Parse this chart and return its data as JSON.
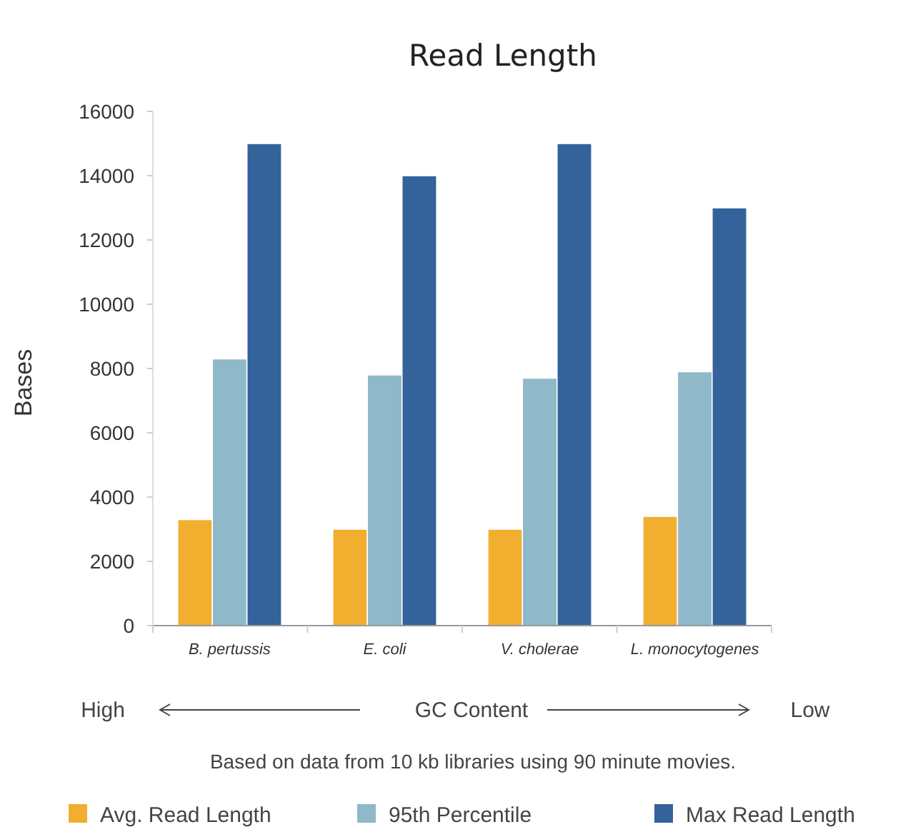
{
  "chart_data": {
    "type": "bar",
    "title": "Read Length",
    "ylabel": "Bases",
    "xlabel": "GC Content",
    "categories": [
      "B. pertussis",
      "E. coli",
      "V. cholerae",
      "L. monocytogenes"
    ],
    "series": [
      {
        "name": "Avg. Read Length",
        "color": "#f2ae2f",
        "values": [
          3300,
          3000,
          3000,
          3400
        ]
      },
      {
        "name": "95th Percentile",
        "color": "#8fb8c8",
        "values": [
          8300,
          7800,
          7700,
          7900
        ]
      },
      {
        "name": "Max Read Length",
        "color": "#34629a",
        "values": [
          15000,
          14000,
          15000,
          13000
        ]
      }
    ],
    "ylim": [
      0,
      16000
    ],
    "yticks": [
      0,
      2000,
      4000,
      6000,
      8000,
      10000,
      12000,
      14000,
      16000
    ],
    "grid": false,
    "legend": "bottom",
    "annotations": [
      "High",
      "Low",
      "Based on data from 10 kb libraries using 90 minute movies."
    ]
  }
}
